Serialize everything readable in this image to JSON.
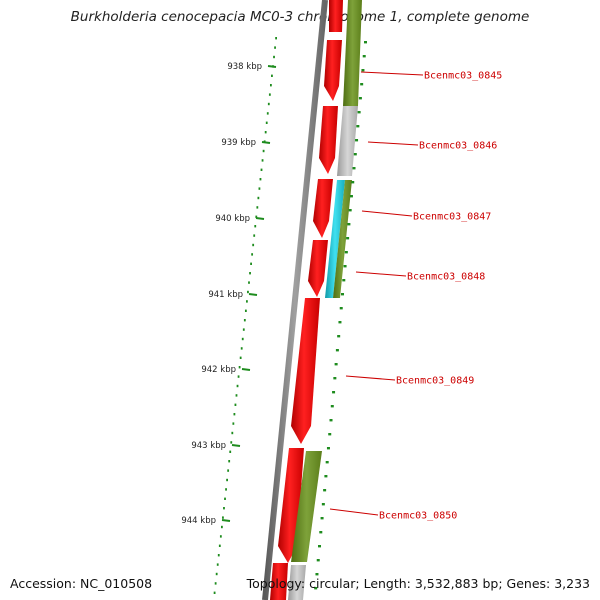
{
  "title": "Burkholderia cenocepacia MC0-3 chromosome 1, complete genome",
  "footer": {
    "accession": "Accession: NC_010508",
    "summary": "Topology: circular; Length: 3,532,883 bp; Genes: 3,233"
  },
  "colors": {
    "gene_red": "#ee0000",
    "gene_olive": "#6b8e23",
    "gene_grey": "#bbbbbb",
    "gene_cyan": "#20c0d0",
    "backbone": "#777777",
    "tick_green": "#1e8c1e",
    "label_red": "#cc0000"
  },
  "kbp_ticks": [
    {
      "kbp": 938,
      "label": "938 kbp"
    },
    {
      "kbp": 939,
      "label": "939 kbp"
    },
    {
      "kbp": 940,
      "label": "940 kbp"
    },
    {
      "kbp": 941,
      "label": "941 kbp"
    },
    {
      "kbp": 942,
      "label": "942 kbp"
    },
    {
      "kbp": 943,
      "label": "943 kbp"
    },
    {
      "kbp": 944,
      "label": "944 kbp"
    }
  ],
  "gene_labels": [
    "Bcenmc03_0845",
    "Bcenmc03_0846",
    "Bcenmc03_0847",
    "Bcenmc03_0848",
    "Bcenmc03_0849",
    "Bcenmc03_0850"
  ]
}
